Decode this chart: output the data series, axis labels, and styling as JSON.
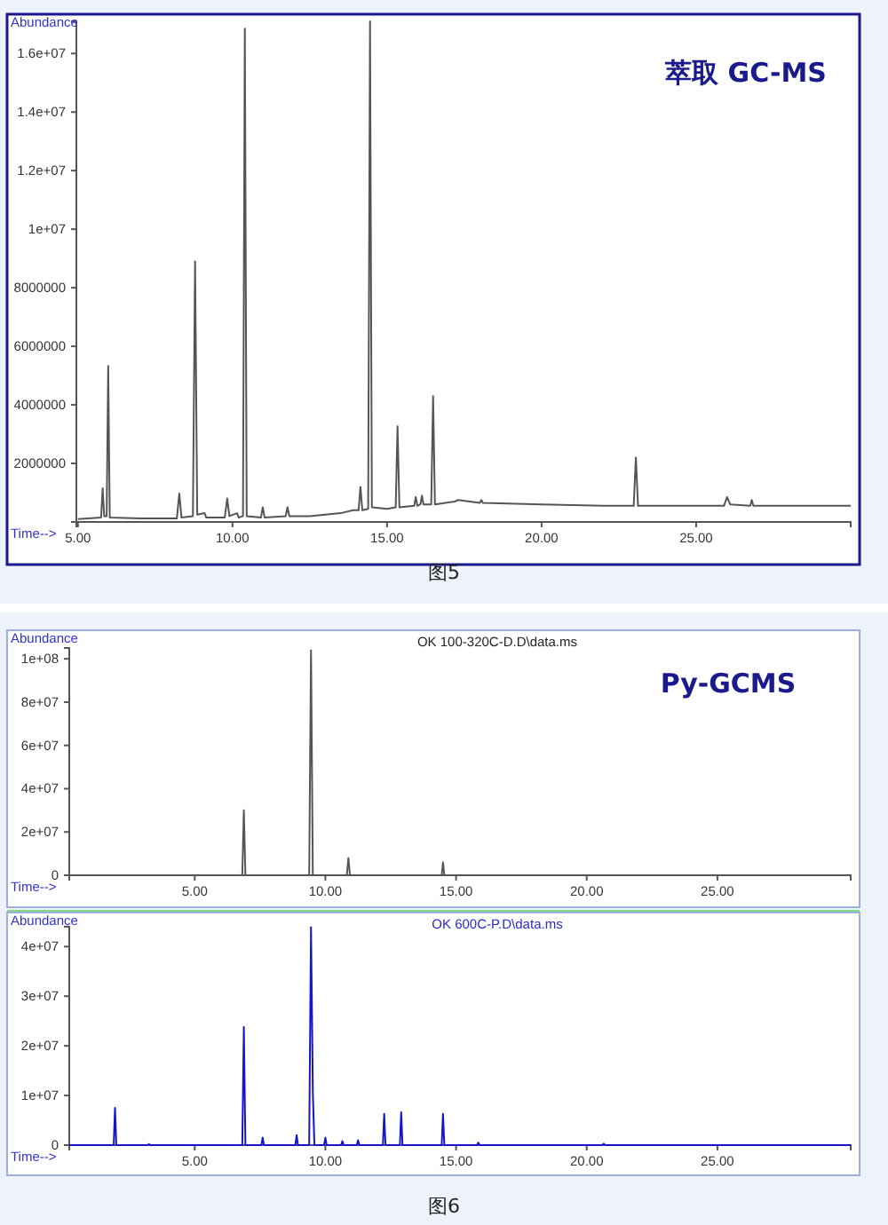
{
  "chart_data": [
    {
      "type": "line",
      "xlabel": "Time-->",
      "ylabel": "Abundance",
      "annotations": [
        "萃取 GC-MS",
        "图5"
      ],
      "xlim": [
        4.95,
        30
      ],
      "ylim": [
        0,
        17100000
      ],
      "xticks": [
        {
          "value": 5,
          "label": "5.00"
        },
        {
          "value": 10,
          "label": "10.00"
        },
        {
          "value": 15,
          "label": "15.00"
        },
        {
          "value": 20,
          "label": "20.00"
        },
        {
          "value": 25,
          "label": "25.00"
        }
      ],
      "yticks": [
        2000000,
        4000000,
        6000000,
        8000000,
        {
          "value": 10000000,
          "label": "1e+07"
        },
        {
          "value": 12000000,
          "label": "1.2e+07"
        },
        {
          "value": 14000000,
          "label": "1.4e+07"
        },
        {
          "value": 16000000,
          "label": "1.6e+07"
        }
      ],
      "x": [
        5.0,
        5.75,
        5.8,
        5.85,
        5.93,
        5.98,
        6.03,
        7.0,
        8.2,
        8.28,
        8.35,
        8.72,
        8.79,
        8.86,
        9.1,
        9.15,
        9.75,
        9.83,
        9.9,
        10.15,
        10.2,
        10.34,
        10.4,
        10.46,
        10.92,
        10.98,
        11.04,
        11.72,
        11.78,
        11.84,
        12.5,
        13.0,
        13.5,
        13.9,
        14.08,
        14.14,
        14.2,
        14.39,
        14.45,
        14.51,
        15.0,
        15.28,
        15.34,
        15.4,
        15.88,
        15.93,
        15.98,
        16.08,
        16.13,
        16.18,
        16.43,
        16.49,
        16.55,
        17.2,
        17.3,
        18.0,
        18.05,
        18.1,
        20.0,
        22.0,
        22.98,
        23.05,
        23.12,
        25.9,
        26.0,
        26.1,
        26.75,
        26.8,
        26.85,
        30.0
      ],
      "series": [
        {
          "color": "#555555",
          "values": [
            100000,
            150000,
            1150000,
            200000,
            200000,
            5330000,
            150000,
            120000,
            120000,
            970000,
            150000,
            200000,
            8900000,
            250000,
            300000,
            150000,
            150000,
            800000,
            200000,
            300000,
            150000,
            200000,
            16850000,
            200000,
            150000,
            500000,
            150000,
            200000,
            500000,
            200000,
            200000,
            250000,
            300000,
            400000,
            400000,
            1200000,
            400000,
            450000,
            17100000,
            500000,
            450000,
            500000,
            3270000,
            500000,
            550000,
            850000,
            550000,
            600000,
            900000,
            600000,
            600000,
            4300000,
            600000,
            700000,
            750000,
            650000,
            750000,
            650000,
            600000,
            550000,
            550000,
            2200000,
            550000,
            550000,
            850000,
            600000,
            550000,
            750000,
            550000,
            550000
          ]
        }
      ]
    },
    {
      "type": "line",
      "title": "OK 100-320C-D.D\\data.ms",
      "xlabel": "Time-->",
      "ylabel": "Abundance",
      "annotations": [
        "Py-GCMS"
      ],
      "xlim": [
        0.2,
        30.1
      ],
      "ylim": [
        0,
        105000000
      ],
      "xticks": [
        {
          "value": 5,
          "label": "5.00"
        },
        {
          "value": 10,
          "label": "10.00"
        },
        {
          "value": 15,
          "label": "15.00"
        },
        {
          "value": 20,
          "label": "20.00"
        },
        {
          "value": 25,
          "label": "25.00"
        }
      ],
      "yticks": [
        0,
        {
          "value": 20000000,
          "label": "2e+07"
        },
        {
          "value": 40000000,
          "label": "4e+07"
        },
        {
          "value": 60000000,
          "label": "6e+07"
        },
        {
          "value": 80000000,
          "label": "8e+07"
        },
        {
          "value": 100000000,
          "label": "1e+08"
        }
      ],
      "x": [
        0.2,
        6.82,
        6.88,
        6.94,
        9.38,
        9.45,
        9.52,
        10.82,
        10.88,
        10.94,
        14.45,
        14.5,
        14.55,
        30.1
      ],
      "series": [
        {
          "color": "#555555",
          "values": [
            0,
            0,
            30000000,
            0,
            0,
            104000000,
            0,
            0,
            8000000,
            0,
            0,
            6000000,
            0,
            0
          ]
        }
      ]
    },
    {
      "type": "line",
      "title": "OK 600C-P.D\\data.ms",
      "xlabel": "Time-->",
      "ylabel": "Abundance",
      "annotations": [
        "图6"
      ],
      "xlim": [
        0.2,
        30.1
      ],
      "ylim": [
        0,
        44000000
      ],
      "xticks": [
        {
          "value": 5,
          "label": "5.00"
        },
        {
          "value": 10,
          "label": "10.00"
        },
        {
          "value": 15,
          "label": "15.00"
        },
        {
          "value": 20,
          "label": "20.00"
        },
        {
          "value": 25,
          "label": "25.00"
        }
      ],
      "yticks": [
        0,
        {
          "value": 10000000,
          "label": "1e+07"
        },
        {
          "value": 20000000,
          "label": "2e+07"
        },
        {
          "value": 30000000,
          "label": "3e+07"
        },
        {
          "value": 40000000,
          "label": "4e+07"
        }
      ],
      "x": [
        0.2,
        1.9,
        1.95,
        2.0,
        3.2,
        3.25,
        3.3,
        6.82,
        6.88,
        6.94,
        7.55,
        7.6,
        7.65,
        8.85,
        8.9,
        8.95,
        9.38,
        9.45,
        9.52,
        9.58,
        9.95,
        10.0,
        10.05,
        10.6,
        10.65,
        10.7,
        11.2,
        11.25,
        11.3,
        12.2,
        12.25,
        12.3,
        12.85,
        12.9,
        12.95,
        14.45,
        14.5,
        14.55,
        15.8,
        15.85,
        15.9,
        20.6,
        20.65,
        20.7,
        30.1
      ],
      "series": [
        {
          "color": "#1515cc",
          "values": [
            0,
            0,
            7500000,
            0,
            0,
            200000,
            0,
            0,
            23800000,
            0,
            0,
            1500000,
            0,
            0,
            2000000,
            0,
            0,
            43900000,
            10500000,
            0,
            0,
            1500000,
            0,
            0,
            800000,
            0,
            0,
            1000000,
            0,
            0,
            6300000,
            0,
            0,
            6600000,
            0,
            0,
            6300000,
            0,
            0,
            500000,
            0,
            0,
            300000,
            0,
            0
          ]
        }
      ]
    }
  ]
}
